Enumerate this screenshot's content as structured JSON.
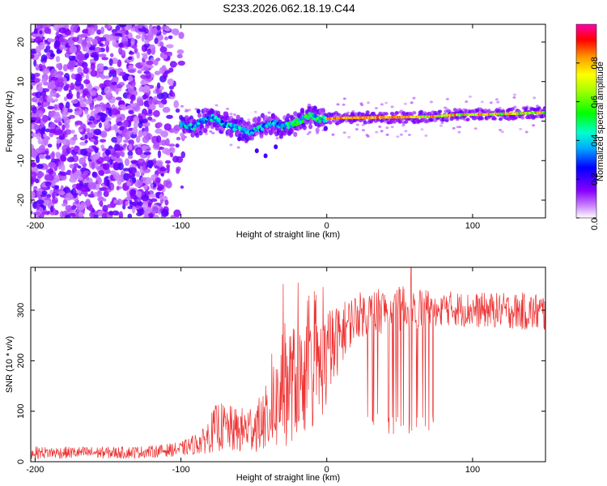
{
  "title": "S233.2026.062.18.19.C44",
  "chart_data": [
    {
      "type": "heatmap",
      "xlabel": "Height of straight line (km)",
      "ylabel": "Frequency (Hz)",
      "xlim": [
        -203,
        150
      ],
      "ylim": [
        -24.5,
        24.5
      ],
      "xticks": [
        -200,
        -100,
        0,
        100
      ],
      "yticks": [
        -20,
        -10,
        0,
        10,
        20
      ],
      "colorbar": {
        "label": "Normalized spectral amplitude",
        "range": [
          0,
          1
        ],
        "ticks": [
          "0.0",
          "0.2",
          "0.4",
          "0.6",
          "0.8"
        ],
        "tick_values": [
          0.0,
          0.2,
          0.4,
          0.6,
          0.8
        ]
      },
      "ridge_center_hz": [
        [
          -100,
          -0.8
        ],
        [
          -92,
          -1.6
        ],
        [
          -85,
          0.2
        ],
        [
          -78,
          0.9
        ],
        [
          -72,
          -0.6
        ],
        [
          -66,
          -1.2
        ],
        [
          -60,
          -2.0
        ],
        [
          -54,
          -2.6
        ],
        [
          -48,
          -2.2
        ],
        [
          -42,
          -1.2
        ],
        [
          -36,
          -0.3
        ],
        [
          -30,
          -1.5
        ],
        [
          -24,
          -0.8
        ],
        [
          -18,
          0.2
        ],
        [
          -12,
          1.4
        ],
        [
          -6,
          0.4
        ],
        [
          0,
          0.6
        ],
        [
          10,
          0.8
        ],
        [
          30,
          0.9
        ],
        [
          50,
          1.0
        ],
        [
          70,
          1.1
        ],
        [
          90,
          1.6
        ],
        [
          110,
          1.7
        ],
        [
          130,
          1.9
        ],
        [
          150,
          2.2
        ]
      ],
      "noise_region_km": [
        -203,
        -95
      ]
    },
    {
      "type": "line",
      "xlabel": "Height of straight line (km)",
      "ylabel": "SNR (10 * v/v)",
      "xlim": [
        -203,
        150
      ],
      "ylim": [
        0,
        385
      ],
      "xticks": [
        -200,
        -100,
        0,
        100
      ],
      "yticks": [
        0,
        100,
        200,
        300
      ],
      "color": "#ee3333",
      "envelope": [
        {
          "x": -200,
          "mean": 18,
          "spread": 12
        },
        {
          "x": -180,
          "mean": 18,
          "spread": 12
        },
        {
          "x": -160,
          "mean": 18,
          "spread": 12
        },
        {
          "x": -140,
          "mean": 18,
          "spread": 12
        },
        {
          "x": -120,
          "mean": 20,
          "spread": 12
        },
        {
          "x": -100,
          "mean": 25,
          "spread": 14
        },
        {
          "x": -85,
          "mean": 40,
          "spread": 25
        },
        {
          "x": -75,
          "mean": 70,
          "spread": 50
        },
        {
          "x": -60,
          "mean": 60,
          "spread": 45
        },
        {
          "x": -45,
          "mean": 75,
          "spread": 55
        },
        {
          "x": -35,
          "mean": 110,
          "spread": 90
        },
        {
          "x": -30,
          "mean": 150,
          "spread": 130
        },
        {
          "x": -20,
          "mean": 160,
          "spread": 110
        },
        {
          "x": -10,
          "mean": 170,
          "spread": 110
        },
        {
          "x": 0,
          "mean": 200,
          "spread": 100
        },
        {
          "x": 10,
          "mean": 255,
          "spread": 60
        },
        {
          "x": 20,
          "mean": 290,
          "spread": 45
        },
        {
          "x": 40,
          "mean": 300,
          "spread": 45
        },
        {
          "x": 60,
          "mean": 305,
          "spread": 45
        },
        {
          "x": 80,
          "mean": 305,
          "spread": 35
        },
        {
          "x": 100,
          "mean": 300,
          "spread": 35
        },
        {
          "x": 120,
          "mean": 300,
          "spread": 35
        },
        {
          "x": 150,
          "mean": 295,
          "spread": 40
        }
      ],
      "dropout_region_km": [
        28,
        78
      ],
      "dropout_min": 55,
      "peak_snr": 385
    }
  ]
}
